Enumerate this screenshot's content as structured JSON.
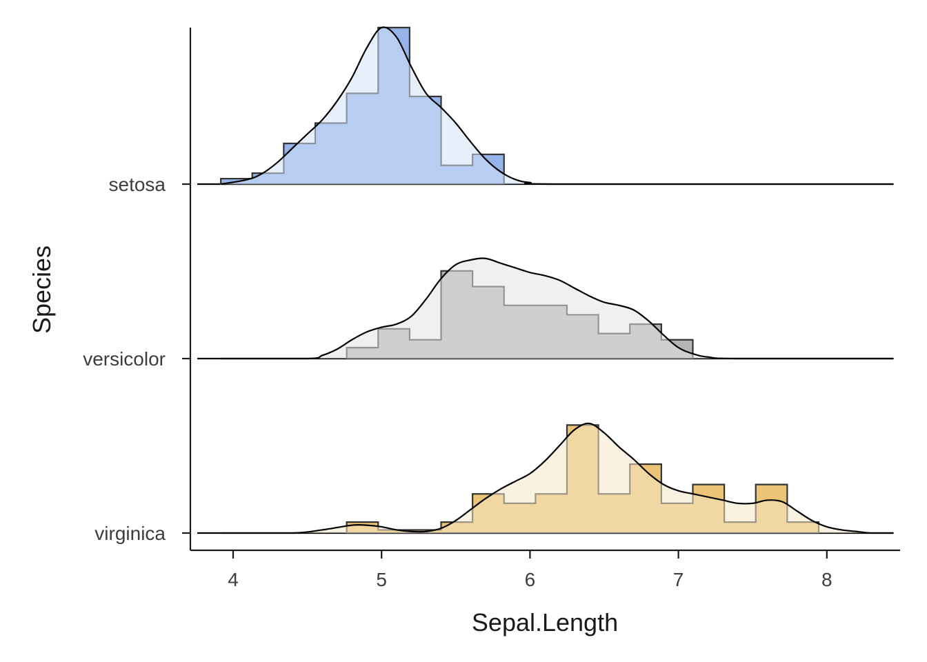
{
  "chart_data": {
    "type": "ridgeline",
    "title": "",
    "xlabel": "Sepal.Length",
    "ylabel": "Species",
    "xlim": [
      3.75,
      8.45
    ],
    "xticks": [
      4,
      5,
      6,
      7,
      8
    ],
    "xtick_labels": [
      "4",
      "5",
      "6",
      "7",
      "8"
    ],
    "grid": false,
    "legend": "none",
    "bin_width": 0.212,
    "bin_start": 3.917,
    "series": [
      {
        "name": "setosa",
        "label": "setosa",
        "hist_fill": "#97b4ea",
        "density_fill": "#d4e1f7",
        "counts": [
          0.035,
          0.07,
          0.26,
          0.39,
          0.58,
          1.0,
          0.56,
          0.12,
          0.19
        ],
        "density": [
          [
            3.92,
            0.0
          ],
          [
            4.1,
            0.03
          ],
          [
            4.2,
            0.07
          ],
          [
            4.3,
            0.14
          ],
          [
            4.4,
            0.23
          ],
          [
            4.5,
            0.32
          ],
          [
            4.6,
            0.41
          ],
          [
            4.7,
            0.53
          ],
          [
            4.8,
            0.68
          ],
          [
            4.9,
            0.87
          ],
          [
            5.0,
            1.0
          ],
          [
            5.1,
            0.94
          ],
          [
            5.2,
            0.75
          ],
          [
            5.3,
            0.58
          ],
          [
            5.4,
            0.49
          ],
          [
            5.5,
            0.39
          ],
          [
            5.6,
            0.27
          ],
          [
            5.7,
            0.16
          ],
          [
            5.8,
            0.08
          ],
          [
            5.9,
            0.03
          ],
          [
            6.0,
            0.01
          ],
          [
            6.2,
            0.0
          ],
          [
            8.45,
            0.0
          ]
        ]
      },
      {
        "name": "versicolor",
        "label": "versicolor",
        "hist_fill": "#b5b5b5",
        "density_fill": "#e3e3e3",
        "counts": [
          0.0,
          0.0,
          0.0,
          0.0,
          0.07,
          0.19,
          0.12,
          0.56,
          0.46,
          0.34,
          0.34,
          0.28,
          0.16,
          0.22,
          0.12
        ],
        "density": [
          [
            3.92,
            0.0
          ],
          [
            4.5,
            0.0
          ],
          [
            4.6,
            0.02
          ],
          [
            4.7,
            0.06
          ],
          [
            4.8,
            0.12
          ],
          [
            4.9,
            0.17
          ],
          [
            5.0,
            0.2
          ],
          [
            5.1,
            0.22
          ],
          [
            5.2,
            0.27
          ],
          [
            5.3,
            0.38
          ],
          [
            5.4,
            0.51
          ],
          [
            5.5,
            0.6
          ],
          [
            5.6,
            0.63
          ],
          [
            5.7,
            0.64
          ],
          [
            5.8,
            0.61
          ],
          [
            5.9,
            0.58
          ],
          [
            6.0,
            0.55
          ],
          [
            6.1,
            0.53
          ],
          [
            6.2,
            0.5
          ],
          [
            6.3,
            0.45
          ],
          [
            6.4,
            0.4
          ],
          [
            6.5,
            0.36
          ],
          [
            6.6,
            0.34
          ],
          [
            6.7,
            0.31
          ],
          [
            6.8,
            0.24
          ],
          [
            6.9,
            0.15
          ],
          [
            7.0,
            0.07
          ],
          [
            7.1,
            0.03
          ],
          [
            7.2,
            0.01
          ],
          [
            7.4,
            0.0
          ],
          [
            8.45,
            0.0
          ]
        ]
      },
      {
        "name": "virginica",
        "label": "virginica",
        "hist_fill": "#ebc477",
        "density_fill": "#f6e7c6",
        "counts": [
          0.0,
          0.0,
          0.0,
          0.0,
          0.07,
          0.02,
          0.02,
          0.07,
          0.25,
          0.19,
          0.25,
          0.69,
          0.25,
          0.44,
          0.19,
          0.31,
          0.07,
          0.31,
          0.07
        ],
        "density": [
          [
            3.92,
            0.0
          ],
          [
            4.4,
            0.0
          ],
          [
            4.6,
            0.02
          ],
          [
            4.8,
            0.05
          ],
          [
            4.9,
            0.05
          ],
          [
            5.0,
            0.04
          ],
          [
            5.1,
            0.02
          ],
          [
            5.2,
            0.01
          ],
          [
            5.3,
            0.01
          ],
          [
            5.4,
            0.03
          ],
          [
            5.5,
            0.08
          ],
          [
            5.6,
            0.15
          ],
          [
            5.7,
            0.22
          ],
          [
            5.8,
            0.28
          ],
          [
            5.9,
            0.33
          ],
          [
            6.0,
            0.38
          ],
          [
            6.1,
            0.46
          ],
          [
            6.2,
            0.56
          ],
          [
            6.3,
            0.66
          ],
          [
            6.4,
            0.7
          ],
          [
            6.5,
            0.64
          ],
          [
            6.6,
            0.55
          ],
          [
            6.7,
            0.47
          ],
          [
            6.8,
            0.38
          ],
          [
            6.9,
            0.31
          ],
          [
            7.0,
            0.27
          ],
          [
            7.1,
            0.25
          ],
          [
            7.2,
            0.23
          ],
          [
            7.3,
            0.21
          ],
          [
            7.4,
            0.19
          ],
          [
            7.5,
            0.19
          ],
          [
            7.6,
            0.21
          ],
          [
            7.7,
            0.2
          ],
          [
            7.8,
            0.14
          ],
          [
            7.9,
            0.08
          ],
          [
            8.0,
            0.04
          ],
          [
            8.1,
            0.02
          ],
          [
            8.2,
            0.01
          ],
          [
            8.3,
            0.0
          ],
          [
            8.45,
            0.0
          ]
        ]
      }
    ]
  }
}
